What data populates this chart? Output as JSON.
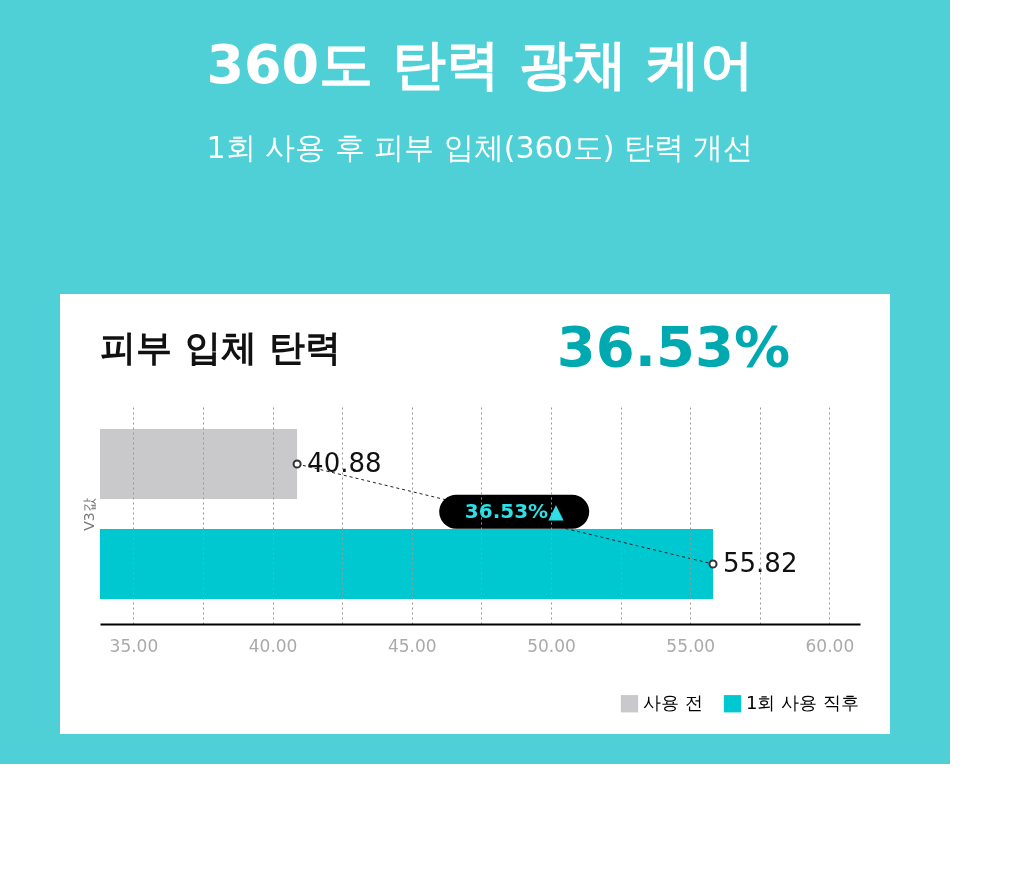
{
  "chart_data": {
    "type": "bar",
    "orientation": "horizontal",
    "title": "360도 탄력 광채 케어",
    "subtitle": "1회 사용 후 피부 입체(360도) 탄력 개선",
    "ylabel": "V3값",
    "categories": [
      null,
      null
    ],
    "series": [
      {
        "name": "사용 전",
        "color": "#c9c9cc",
        "values": [
          40.88,
          null
        ]
      },
      {
        "name": "1회 사용 직후",
        "color": "#00c8d0",
        "values": [
          null,
          55.82
        ]
      }
    ],
    "xlim": [
      33.8,
      61.1
    ],
    "xticks": [
      {
        "value": 35,
        "label": "35.00"
      },
      {
        "value": 37.5,
        "label": null
      },
      {
        "value": 40,
        "label": "40.00"
      },
      {
        "value": 42.5,
        "label": null
      },
      {
        "value": 45,
        "label": "45.00"
      },
      {
        "value": 47.5,
        "label": null
      },
      {
        "value": 50,
        "label": "50.00"
      },
      {
        "value": 52.5,
        "label": null
      },
      {
        "value": 55,
        "label": "55.00"
      },
      {
        "value": 57.5,
        "label": null
      },
      {
        "value": 60,
        "label": "60.00"
      }
    ],
    "grid": "x",
    "data_labels": true,
    "legend": "bottom right",
    "annotations": [
      "피부 입체 탄력",
      "36.53%",
      "36.53%▲"
    ]
  }
}
